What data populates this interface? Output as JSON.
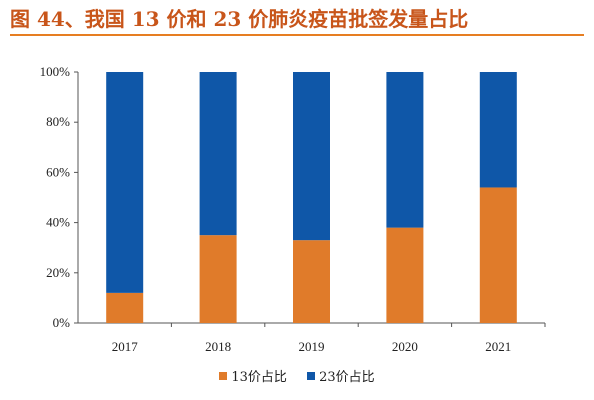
{
  "title": "图 44、我国 13 价和 23 价肺炎疫苗批签发量占比",
  "colors": {
    "title": "#c8551a",
    "title_rule": "#e67e22",
    "series_13": "#e07b2a",
    "series_23": "#0f57a8"
  },
  "legend": {
    "items": [
      {
        "label": "13价占比",
        "color": "#e07b2a"
      },
      {
        "label": "23价占比",
        "color": "#0f57a8"
      }
    ],
    "position": "bottom-center"
  },
  "chart_data": {
    "type": "bar",
    "stacked": true,
    "categories": [
      "2017",
      "2018",
      "2019",
      "2020",
      "2021"
    ],
    "series": [
      {
        "name": "13价占比",
        "values": [
          12,
          35,
          33,
          38,
          54
        ],
        "color": "#e07b2a"
      },
      {
        "name": "23价占比",
        "values": [
          88,
          65,
          67,
          62,
          46
        ],
        "color": "#0f57a8"
      }
    ],
    "ylim": [
      0,
      100
    ],
    "yticks": [
      "0%",
      "20%",
      "40%",
      "60%",
      "80%",
      "100%"
    ],
    "ytick_values": [
      0,
      20,
      40,
      60,
      80,
      100
    ],
    "xlabel": "",
    "ylabel": "",
    "grid": false
  }
}
